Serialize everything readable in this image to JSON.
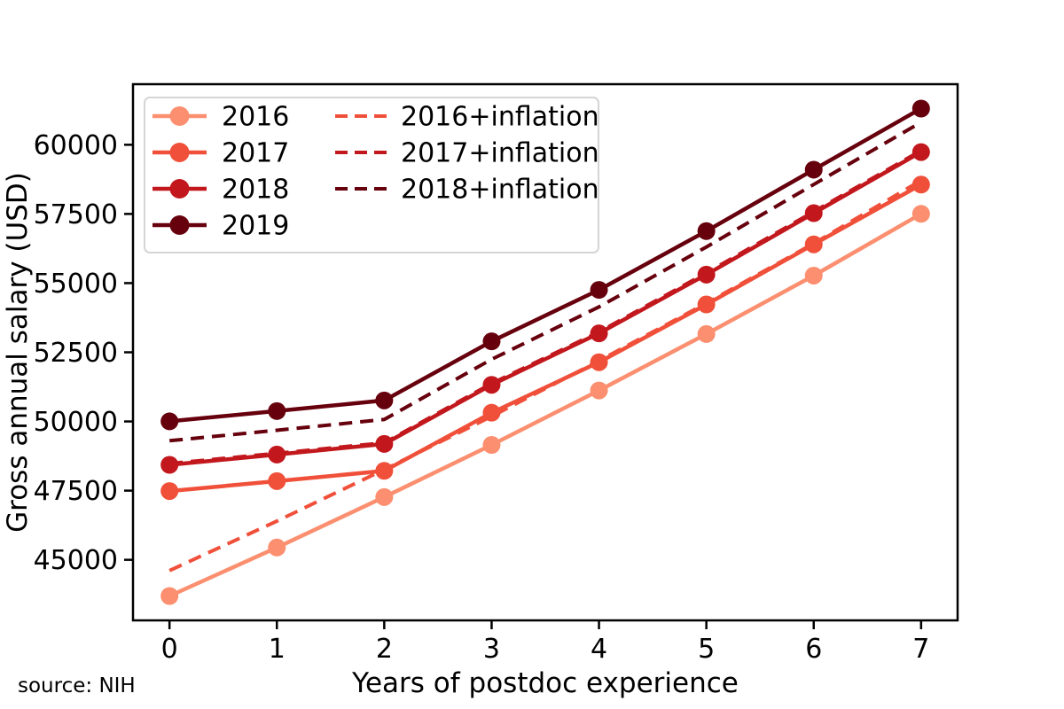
{
  "source_note": "source: NIH",
  "chart_data": {
    "type": "line",
    "title": "",
    "xlabel": "Years of postdoc experience",
    "ylabel": "Gross annual salary (USD)",
    "x": [
      0,
      1,
      2,
      3,
      4,
      5,
      6,
      7
    ],
    "x_ticks": [
      "0",
      "1",
      "2",
      "3",
      "4",
      "5",
      "6",
      "7"
    ],
    "y_ticks": [
      45000,
      47500,
      50000,
      52500,
      55000,
      57500,
      60000
    ],
    "xlim": [
      -0.34,
      7.34
    ],
    "ylim": [
      42811,
      62189
    ],
    "grid": false,
    "legend_position": "upper-left",
    "frame_color": "#000000",
    "series": [
      {
        "name": "2016",
        "color": "#FB8F6F",
        "style": "solid",
        "marker": true,
        "values": [
          43692,
          45444,
          47268,
          49152,
          51120,
          53160,
          55272,
          57504
        ]
      },
      {
        "name": "2017",
        "color": "#F0503A",
        "style": "solid",
        "marker": true,
        "values": [
          47484,
          47844,
          48216,
          50316,
          52140,
          54228,
          56400,
          58560
        ]
      },
      {
        "name": "2018",
        "color": "#C2181D",
        "style": "solid",
        "marker": true,
        "values": [
          48432,
          48804,
          49188,
          51324,
          53184,
          55308,
          57528,
          59736
        ]
      },
      {
        "name": "2019",
        "color": "#67000D",
        "style": "solid",
        "marker": true,
        "values": [
          50004,
          50376,
          50760,
          52896,
          54756,
          56880,
          59100,
          61308
        ]
      },
      {
        "name": "2016+inflation",
        "color": "#F0503A",
        "style": "dashed",
        "marker": false,
        "values": [
          44610,
          46398,
          48261,
          50184,
          52194,
          54276,
          56433,
          58712
        ]
      },
      {
        "name": "2017+inflation",
        "color": "#C2181D",
        "style": "dashed",
        "marker": false,
        "values": [
          48481,
          48849,
          49229,
          51373,
          53235,
          55367,
          57584,
          59790
        ]
      },
      {
        "name": "2018+inflation",
        "color": "#67000D",
        "style": "dashed",
        "marker": false,
        "values": [
          49304,
          49682,
          50073,
          52248,
          54141,
          56304,
          58564,
          60811
        ]
      }
    ],
    "legend": {
      "column1": [
        "2016",
        "2017",
        "2018",
        "2019"
      ],
      "column2": [
        "2016+inflation",
        "2017+inflation",
        "2018+inflation"
      ]
    }
  }
}
